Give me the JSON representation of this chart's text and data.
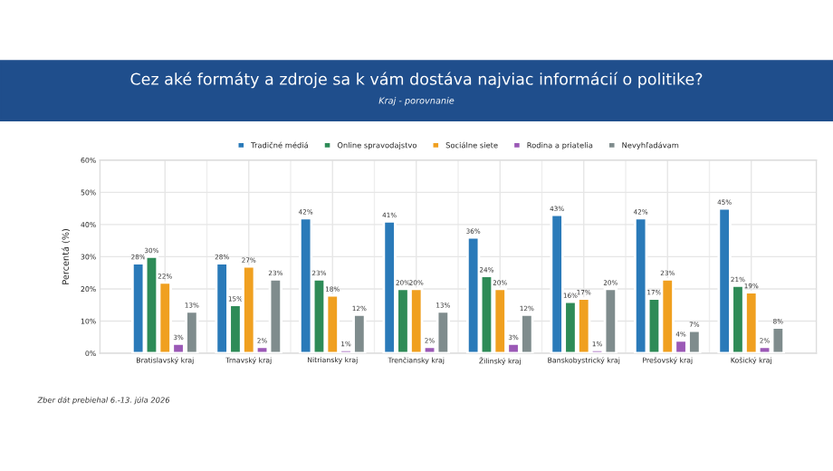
{
  "chart_data": {
    "type": "bar",
    "title": "Cez aké formáty a zdroje sa k vám dostáva najviac informácií o politike?",
    "subtitle": "Kraj - porovnanie",
    "ylabel": "Percentá (%)",
    "categories": [
      "Bratislavský kraj",
      "Trnavský kraj",
      "Nitriansky kraj",
      "Trenčiansky kraj",
      "Žilinský kraj",
      "Banskobystrický kraj",
      "Prešovský kraj",
      "Košický kraj"
    ],
    "series": [
      {
        "name": "Tradičné médiá",
        "color": "#2a7ab9",
        "values": [
          28,
          28,
          42,
          41,
          36,
          43,
          42,
          45
        ],
        "value_labels": [
          "28%",
          "28%",
          "42%",
          "41%",
          "36%",
          "43%",
          "42%",
          "45%"
        ]
      },
      {
        "name": "Online spravodajstvo",
        "color": "#2e8b57",
        "values": [
          30,
          15,
          23,
          20,
          24,
          16,
          17,
          21
        ],
        "value_labels": [
          "30%",
          "15%",
          "23%",
          "20%",
          "24%",
          "16%",
          "17%",
          "21%"
        ]
      },
      {
        "name": "Sociálne siete",
        "color": "#f0a020",
        "values": [
          22,
          27,
          18,
          20,
          20,
          17,
          23,
          19
        ],
        "value_labels": [
          "22%",
          "27%",
          "18%",
          "20%",
          "20%",
          "17%",
          "23%",
          "19%"
        ]
      },
      {
        "name": "Rodina a priatelia",
        "color": "#9b59b6",
        "values": [
          3,
          2,
          1,
          2,
          3,
          1,
          4,
          2
        ],
        "value_labels": [
          "3%",
          "2%",
          "1%",
          "2%",
          "3%",
          "1%",
          "4%",
          "2%"
        ]
      },
      {
        "name": "Nevyhľadávam",
        "color": "#7f8c8d",
        "values": [
          13,
          23,
          12,
          13,
          12,
          20,
          7,
          8
        ],
        "value_labels": [
          "13%",
          "23%",
          "12%",
          "13%",
          "12%",
          "20%",
          "7%",
          "8%"
        ]
      }
    ],
    "ylim": [
      0,
      60
    ],
    "yticks": [
      {
        "value": 0,
        "label": "0%"
      },
      {
        "value": 10,
        "label": "10%"
      },
      {
        "value": 20,
        "label": "20%"
      },
      {
        "value": 30,
        "label": "30%"
      },
      {
        "value": 40,
        "label": "40%"
      },
      {
        "value": 50,
        "label": "50%"
      },
      {
        "value": 60,
        "label": "60%"
      }
    ],
    "grid": true,
    "legend": "top",
    "annotations": [
      "Zber dát prebiehal 6.-13. júla 2026"
    ]
  }
}
